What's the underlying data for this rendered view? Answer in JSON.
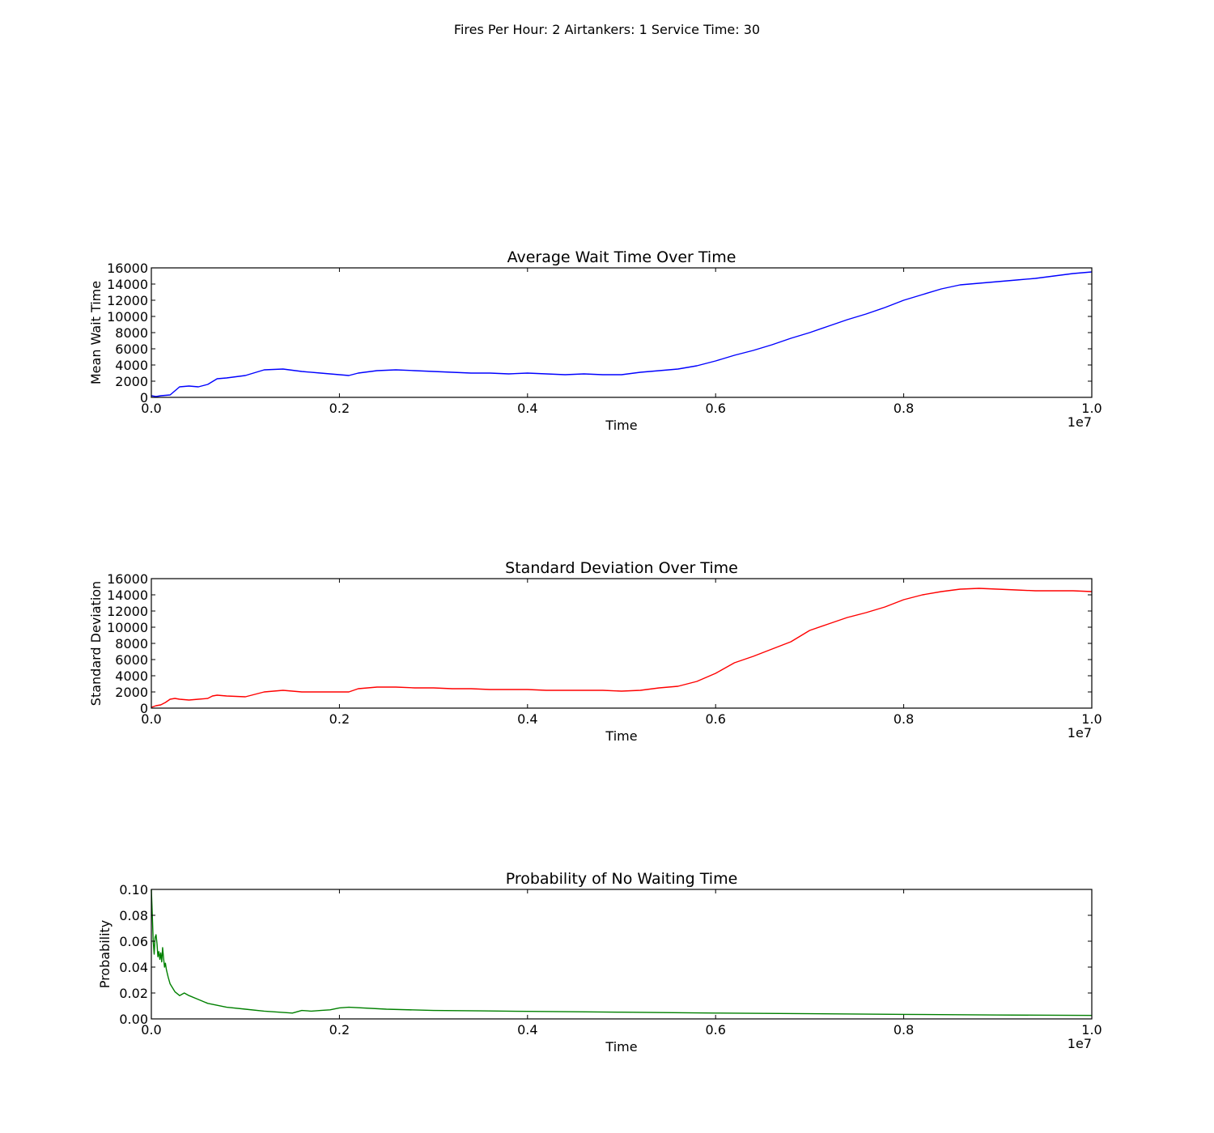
{
  "figure": {
    "suptitle": "Fires Per Hour: 2  Airtankers: 1  Service Time: 30"
  },
  "chart_data": [
    {
      "type": "line",
      "title": "Average Wait Time Over Time",
      "xlabel": "Time",
      "ylabel": "Mean Wait Time",
      "xlim": [
        0.0,
        1.0
      ],
      "ylim": [
        0,
        16000
      ],
      "x_offset_label": "1e7",
      "xticks": [
        0.0,
        0.2,
        0.4,
        0.6,
        0.8,
        1.0
      ],
      "xtick_labels": [
        "0.0",
        "0.2",
        "0.4",
        "0.6",
        "0.8",
        "1.0"
      ],
      "yticks": [
        0,
        2000,
        4000,
        6000,
        8000,
        10000,
        12000,
        14000,
        16000
      ],
      "ytick_labels": [
        "0",
        "2000",
        "4000",
        "6000",
        "8000",
        "10000",
        "12000",
        "14000",
        "16000"
      ],
      "grid": false,
      "series": [
        {
          "color": "#0000ff",
          "x": [
            0.0,
            0.005,
            0.01,
            0.02,
            0.03,
            0.04,
            0.05,
            0.06,
            0.07,
            0.08,
            0.1,
            0.12,
            0.14,
            0.16,
            0.18,
            0.2,
            0.21,
            0.22,
            0.24,
            0.26,
            0.28,
            0.3,
            0.32,
            0.34,
            0.36,
            0.38,
            0.4,
            0.42,
            0.44,
            0.46,
            0.48,
            0.5,
            0.52,
            0.54,
            0.56,
            0.58,
            0.6,
            0.62,
            0.64,
            0.66,
            0.68,
            0.7,
            0.72,
            0.74,
            0.76,
            0.78,
            0.8,
            0.82,
            0.84,
            0.86,
            0.88,
            0.9,
            0.92,
            0.94,
            0.96,
            0.98,
            1.0
          ],
          "y": [
            200,
            100,
            200,
            300,
            1300,
            1400,
            1300,
            1600,
            2300,
            2400,
            2700,
            3400,
            3500,
            3200,
            3000,
            2800,
            2700,
            3000,
            3300,
            3400,
            3300,
            3200,
            3100,
            3000,
            3000,
            2900,
            3000,
            2900,
            2800,
            2900,
            2800,
            2800,
            3100,
            3300,
            3500,
            3900,
            4500,
            5200,
            5800,
            6500,
            7300,
            8000,
            8800,
            9600,
            10300,
            11100,
            12000,
            12700,
            13400,
            13900,
            14100,
            14300,
            14500,
            14700,
            15000,
            15300,
            15500
          ]
        }
      ]
    },
    {
      "type": "line",
      "title": "Standard Deviation Over Time",
      "xlabel": "Time",
      "ylabel": "Standard Deviation",
      "xlim": [
        0.0,
        1.0
      ],
      "ylim": [
        0,
        16000
      ],
      "x_offset_label": "1e7",
      "xticks": [
        0.0,
        0.2,
        0.4,
        0.6,
        0.8,
        1.0
      ],
      "xtick_labels": [
        "0.0",
        "0.2",
        "0.4",
        "0.6",
        "0.8",
        "1.0"
      ],
      "yticks": [
        0,
        2000,
        4000,
        6000,
        8000,
        10000,
        12000,
        14000,
        16000
      ],
      "ytick_labels": [
        "0",
        "2000",
        "4000",
        "6000",
        "8000",
        "10000",
        "12000",
        "14000",
        "16000"
      ],
      "grid": false,
      "series": [
        {
          "color": "#ff0000",
          "x": [
            0.0,
            0.005,
            0.01,
            0.015,
            0.02,
            0.025,
            0.03,
            0.04,
            0.05,
            0.06,
            0.065,
            0.07,
            0.08,
            0.1,
            0.12,
            0.14,
            0.16,
            0.18,
            0.2,
            0.21,
            0.22,
            0.24,
            0.26,
            0.28,
            0.3,
            0.32,
            0.34,
            0.36,
            0.38,
            0.4,
            0.42,
            0.44,
            0.46,
            0.48,
            0.5,
            0.52,
            0.54,
            0.56,
            0.58,
            0.6,
            0.62,
            0.64,
            0.66,
            0.68,
            0.7,
            0.72,
            0.74,
            0.76,
            0.78,
            0.8,
            0.82,
            0.84,
            0.86,
            0.88,
            0.9,
            0.92,
            0.94,
            0.96,
            0.98,
            1.0
          ],
          "y": [
            100,
            300,
            400,
            700,
            1100,
            1200,
            1100,
            1000,
            1100,
            1200,
            1500,
            1600,
            1500,
            1400,
            2000,
            2200,
            2000,
            2000,
            2000,
            2000,
            2400,
            2600,
            2600,
            2500,
            2500,
            2400,
            2400,
            2300,
            2300,
            2300,
            2200,
            2200,
            2200,
            2200,
            2100,
            2200,
            2500,
            2700,
            3300,
            4300,
            5600,
            6400,
            7300,
            8200,
            9600,
            10400,
            11200,
            11800,
            12500,
            13400,
            14000,
            14400,
            14700,
            14800,
            14700,
            14600,
            14500,
            14500,
            14500,
            14400
          ]
        }
      ]
    },
    {
      "type": "line",
      "title": "Probability of No Waiting Time",
      "xlabel": "Time",
      "ylabel": "Probability",
      "xlim": [
        0.0,
        1.0
      ],
      "ylim": [
        0.0,
        0.1
      ],
      "x_offset_label": "1e7",
      "xticks": [
        0.0,
        0.2,
        0.4,
        0.6,
        0.8,
        1.0
      ],
      "xtick_labels": [
        "0.0",
        "0.2",
        "0.4",
        "0.6",
        "0.8",
        "1.0"
      ],
      "yticks": [
        0.0,
        0.02,
        0.04,
        0.06,
        0.08,
        0.1
      ],
      "ytick_labels": [
        "0.00",
        "0.02",
        "0.04",
        "0.06",
        "0.08",
        "0.10"
      ],
      "grid": false,
      "series": [
        {
          "color": "#008000",
          "x": [
            0.0,
            0.001,
            0.002,
            0.003,
            0.004,
            0.005,
            0.006,
            0.007,
            0.008,
            0.009,
            0.01,
            0.011,
            0.012,
            0.013,
            0.014,
            0.015,
            0.016,
            0.018,
            0.02,
            0.025,
            0.03,
            0.035,
            0.04,
            0.05,
            0.06,
            0.08,
            0.1,
            0.12,
            0.15,
            0.16,
            0.17,
            0.18,
            0.19,
            0.2,
            0.21,
            0.25,
            0.3,
            0.35,
            0.4,
            0.45,
            0.5,
            0.6,
            0.7,
            0.8,
            0.9,
            1.0
          ],
          "y": [
            0.1,
            0.08,
            0.06,
            0.05,
            0.063,
            0.065,
            0.058,
            0.048,
            0.052,
            0.046,
            0.051,
            0.044,
            0.055,
            0.047,
            0.04,
            0.043,
            0.038,
            0.032,
            0.027,
            0.021,
            0.018,
            0.02,
            0.018,
            0.015,
            0.012,
            0.009,
            0.0075,
            0.006,
            0.0045,
            0.0065,
            0.006,
            0.0065,
            0.007,
            0.0085,
            0.009,
            0.0075,
            0.0065,
            0.0062,
            0.0058,
            0.0055,
            0.0052,
            0.0045,
            0.004,
            0.0035,
            0.003,
            0.0027
          ]
        }
      ]
    }
  ]
}
